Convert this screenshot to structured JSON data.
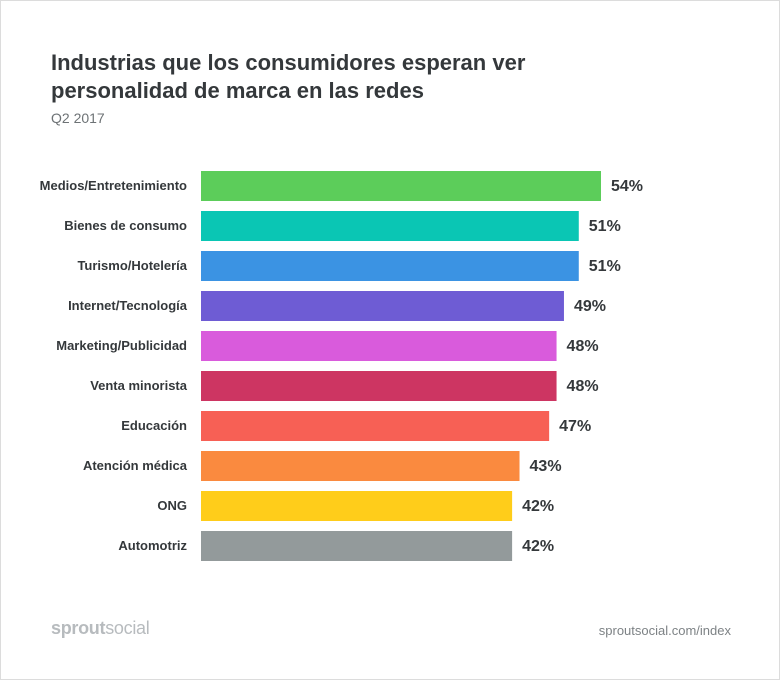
{
  "chart_data": {
    "type": "bar",
    "orientation": "horizontal",
    "title": "Industrias que los consumidores esperan ver personalidad de marca en las redes",
    "subtitle": "Q2 2017",
    "categories": [
      "Medios/Entretenimiento",
      "Bienes de consumo",
      "Turismo/Hotelería",
      "Internet/Tecnología",
      "Marketing/Publicidad",
      "Venta minorista",
      "Educación",
      "Atención médica",
      "ONG",
      "Automotriz"
    ],
    "values": [
      54,
      51,
      51,
      49,
      48,
      48,
      47,
      43,
      42,
      42
    ],
    "value_labels": [
      "54%",
      "51%",
      "51%",
      "49%",
      "48%",
      "48%",
      "47%",
      "43%",
      "42%",
      "42%"
    ],
    "colors": [
      "#5ccd5a",
      "#0ac6b4",
      "#3b93e3",
      "#6e5cd4",
      "#d95bdc",
      "#cd3562",
      "#f76055",
      "#fa8a3f",
      "#ffcd1a",
      "#939a9b"
    ],
    "unit": "%",
    "grid": false,
    "legend": "none"
  },
  "footer": {
    "logo_bold": "sprout",
    "logo_light": "social",
    "source": "sproutsocial.com/index"
  }
}
